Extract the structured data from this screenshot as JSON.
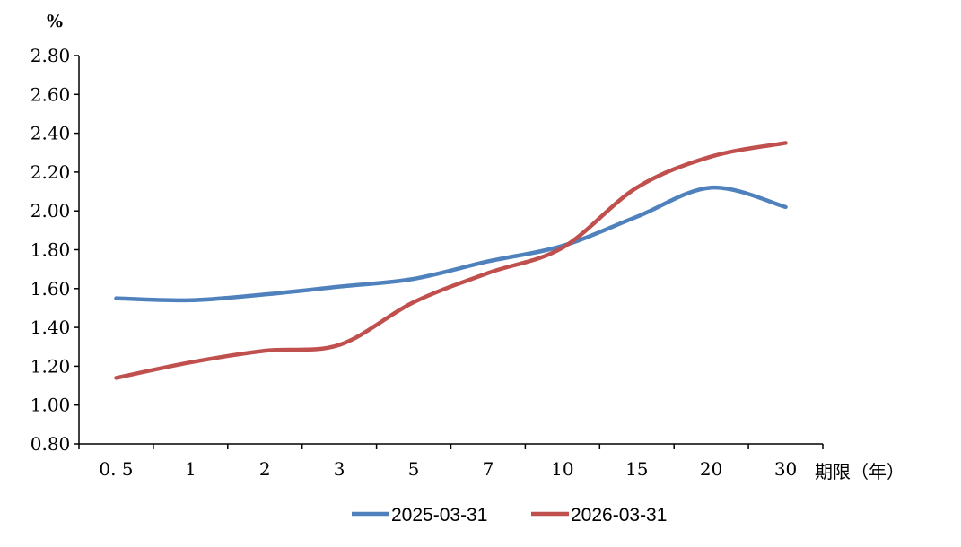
{
  "chart_data": {
    "type": "line",
    "ylabel": "%",
    "xlabel": "期限（年）",
    "categories": [
      "0.5",
      "1",
      "2",
      "3",
      "5",
      "7",
      "10",
      "15",
      "20",
      "30"
    ],
    "ylim": [
      0.8,
      2.8
    ],
    "yticks": [
      "0.80",
      "1.00",
      "1.20",
      "1.40",
      "1.60",
      "1.80",
      "2.00",
      "2.20",
      "2.40",
      "2.60",
      "2.80"
    ],
    "grid": false,
    "legend_position": "bottom",
    "series": [
      {
        "name": "2025-03-31",
        "color": "#4f81bd",
        "values": [
          1.55,
          1.54,
          1.57,
          1.61,
          1.65,
          1.74,
          1.82,
          1.97,
          2.12,
          2.02
        ]
      },
      {
        "name": "2026-03-31",
        "color": "#c0504d",
        "values": [
          1.14,
          1.22,
          1.28,
          1.31,
          1.53,
          1.68,
          1.81,
          2.12,
          2.28,
          2.35
        ]
      }
    ]
  }
}
